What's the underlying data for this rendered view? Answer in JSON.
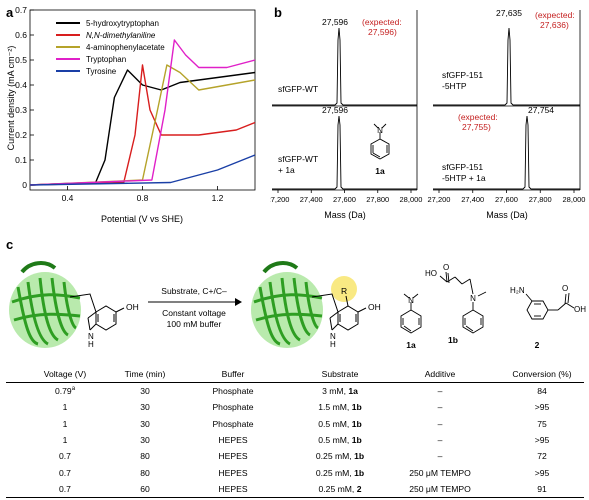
{
  "panel_a": {
    "label": "a",
    "xlabel": "Potential (V vs SHE)",
    "ylabel": "Current density (mA cm⁻²)",
    "xticks": [
      "0.4",
      "0.8",
      "1.2"
    ],
    "yticks": [
      "0",
      "0.1",
      "0.2",
      "0.3",
      "0.4",
      "0.5",
      "0.6",
      "0.7"
    ],
    "legend": [
      {
        "name": "5-hydroxytryptophan",
        "color": "#000000"
      },
      {
        "name": "N,N-dimethylaniline",
        "color": "#d81e1e"
      },
      {
        "name": "4-aminophenylacetate",
        "color": "#b5a32a"
      },
      {
        "name": "Tryptophan",
        "color": "#e020c8"
      },
      {
        "name": "Tyrosine",
        "color": "#1a3fa6"
      }
    ]
  },
  "panel_b": {
    "label": "b",
    "xlabel_left": "Mass (Da)",
    "xlabel_right": "Mass (Da)",
    "xticks": [
      "27,200",
      "27,400",
      "27,600",
      "27,800",
      "28,000"
    ],
    "spectra": [
      {
        "sample_line1": "sfGFP-WT",
        "sample_line2": "",
        "peak": "27,596",
        "expected_line1": "(expected:",
        "expected_line2": "27,596)"
      },
      {
        "sample_line1": "sfGFP-WT",
        "sample_line2": "+ 1a",
        "peak": "27,596",
        "expected_line1": "",
        "expected_line2": ""
      },
      {
        "sample_line1": "sfGFP-151",
        "sample_line2": "-5HTP",
        "peak": "27,635",
        "expected_line1": "(expected:",
        "expected_line2": "27,636)"
      },
      {
        "sample_line1": "sfGFP-151",
        "sample_line2": "-5HTP + 1a",
        "peak": "27,754",
        "expected_line1": "(expected:",
        "expected_line2": "27,755)"
      }
    ],
    "compound_label": "1a"
  },
  "panel_c": {
    "label": "c",
    "arrow_top": "Substrate, C+/C–",
    "arrow_bottom_1": "Constant voltage",
    "arrow_bottom_2": "100 mM buffer",
    "oh_left": "OH",
    "nh_left": "N",
    "nh_left_h": "H",
    "oh_right": "OH",
    "nh_right": "N",
    "nh_right_h": "H",
    "r_label": "R",
    "compounds": {
      "c1a": "1a",
      "c1b": "1b",
      "c2": "2",
      "ho": "HO",
      "o": "O",
      "h2n": "H₂N",
      "oh": "OH",
      "n": "N"
    }
  },
  "table": {
    "headers": [
      "Voltage (V)",
      "Time (min)",
      "Buffer",
      "Substrate",
      "Additive",
      "Conversion (%)"
    ],
    "rows": [
      {
        "voltage": "0.79",
        "voltage_note": "a",
        "time": "30",
        "buffer": "Phosphate",
        "substrate_amount": "3 mM,",
        "substrate_id": "1a",
        "additive": "–",
        "conversion": "84"
      },
      {
        "voltage": "1",
        "voltage_note": "",
        "time": "30",
        "buffer": "Phosphate",
        "substrate_amount": "1.5 mM,",
        "substrate_id": "1b",
        "additive": "–",
        "conversion": ">95"
      },
      {
        "voltage": "1",
        "voltage_note": "",
        "time": "30",
        "buffer": "Phosphate",
        "substrate_amount": "0.5 mM,",
        "substrate_id": "1b",
        "additive": "–",
        "conversion": "75"
      },
      {
        "voltage": "1",
        "voltage_note": "",
        "time": "30",
        "buffer": "HEPES",
        "substrate_amount": "0.5 mM,",
        "substrate_id": "1b",
        "additive": "–",
        "conversion": ">95"
      },
      {
        "voltage": "0.7",
        "voltage_note": "",
        "time": "80",
        "buffer": "HEPES",
        "substrate_amount": "0.25 mM,",
        "substrate_id": "1b",
        "additive": "–",
        "conversion": "72"
      },
      {
        "voltage": "0.7",
        "voltage_note": "",
        "time": "80",
        "buffer": "HEPES",
        "substrate_amount": "0.25 mM,",
        "substrate_id": "1b",
        "additive": "250 μM TEMPO",
        "conversion": ">95"
      },
      {
        "voltage": "0.7",
        "voltage_note": "",
        "time": "60",
        "buffer": "HEPES",
        "substrate_amount": "0.25 mM,",
        "substrate_id": "2",
        "additive": "250 μM TEMPO",
        "conversion": "91"
      }
    ]
  }
}
